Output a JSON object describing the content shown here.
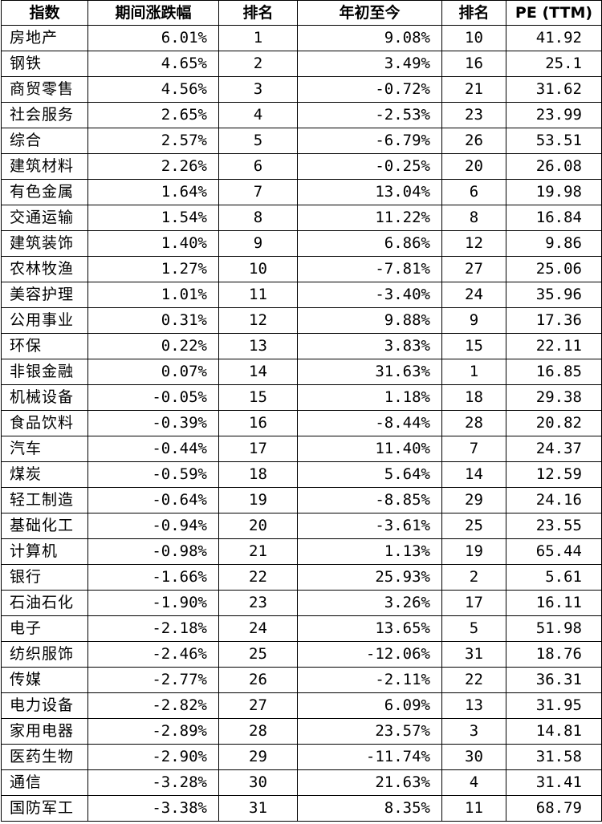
{
  "table": {
    "headers": [
      "指数",
      "期间涨跌幅",
      "排名",
      "年初至今",
      "排名",
      "PE (TTM)"
    ],
    "rows": [
      [
        "房地产",
        "6.01%",
        "1",
        "9.08%",
        "10",
        "41.92"
      ],
      [
        "钢铁",
        "4.65%",
        "2",
        "3.49%",
        "16",
        "25.1"
      ],
      [
        "商贸零售",
        "4.56%",
        "3",
        "-0.72%",
        "21",
        "31.62"
      ],
      [
        "社会服务",
        "2.65%",
        "4",
        "-2.53%",
        "23",
        "23.99"
      ],
      [
        "综合",
        "2.57%",
        "5",
        "-6.79%",
        "26",
        "53.51"
      ],
      [
        "建筑材料",
        "2.26%",
        "6",
        "-0.25%",
        "20",
        "26.08"
      ],
      [
        "有色金属",
        "1.64%",
        "7",
        "13.04%",
        "6",
        "19.98"
      ],
      [
        "交通运输",
        "1.54%",
        "8",
        "11.22%",
        "8",
        "16.84"
      ],
      [
        "建筑装饰",
        "1.40%",
        "9",
        "6.86%",
        "12",
        "9.86"
      ],
      [
        "农林牧渔",
        "1.27%",
        "10",
        "-7.81%",
        "27",
        "25.06"
      ],
      [
        "美容护理",
        "1.01%",
        "11",
        "-3.40%",
        "24",
        "35.96"
      ],
      [
        "公用事业",
        "0.31%",
        "12",
        "9.88%",
        "9",
        "17.36"
      ],
      [
        "环保",
        "0.22%",
        "13",
        "3.83%",
        "15",
        "22.11"
      ],
      [
        "非银金融",
        "0.07%",
        "14",
        "31.63%",
        "1",
        "16.85"
      ],
      [
        "机械设备",
        "-0.05%",
        "15",
        "1.18%",
        "18",
        "29.38"
      ],
      [
        "食品饮料",
        "-0.39%",
        "16",
        "-8.44%",
        "28",
        "20.82"
      ],
      [
        "汽车",
        "-0.44%",
        "17",
        "11.40%",
        "7",
        "24.37"
      ],
      [
        "煤炭",
        "-0.59%",
        "18",
        "5.64%",
        "14",
        "12.59"
      ],
      [
        "轻工制造",
        "-0.64%",
        "19",
        "-8.85%",
        "29",
        "24.16"
      ],
      [
        "基础化工",
        "-0.94%",
        "20",
        "-3.61%",
        "25",
        "23.55"
      ],
      [
        "计算机",
        "-0.98%",
        "21",
        "1.13%",
        "19",
        "65.44"
      ],
      [
        "银行",
        "-1.66%",
        "22",
        "25.93%",
        "2",
        "5.61"
      ],
      [
        "石油石化",
        "-1.90%",
        "23",
        "3.26%",
        "17",
        "16.11"
      ],
      [
        "电子",
        "-2.18%",
        "24",
        "13.65%",
        "5",
        "51.98"
      ],
      [
        "纺织服饰",
        "-2.46%",
        "25",
        "-12.06%",
        "31",
        "18.76"
      ],
      [
        "传媒",
        "-2.77%",
        "26",
        "-2.11%",
        "22",
        "36.31"
      ],
      [
        "电力设备",
        "-2.82%",
        "27",
        "6.09%",
        "13",
        "31.95"
      ],
      [
        "家用电器",
        "-2.89%",
        "28",
        "23.57%",
        "3",
        "14.81"
      ],
      [
        "医药生物",
        "-2.90%",
        "29",
        "-11.74%",
        "30",
        "31.58"
      ],
      [
        "通信",
        "-3.28%",
        "30",
        "21.63%",
        "4",
        "31.41"
      ],
      [
        "国防军工",
        "-3.38%",
        "31",
        "8.35%",
        "11",
        "68.79"
      ]
    ]
  },
  "colors": {
    "text": "#000000",
    "border": "#000000",
    "background": "#ffffff"
  }
}
